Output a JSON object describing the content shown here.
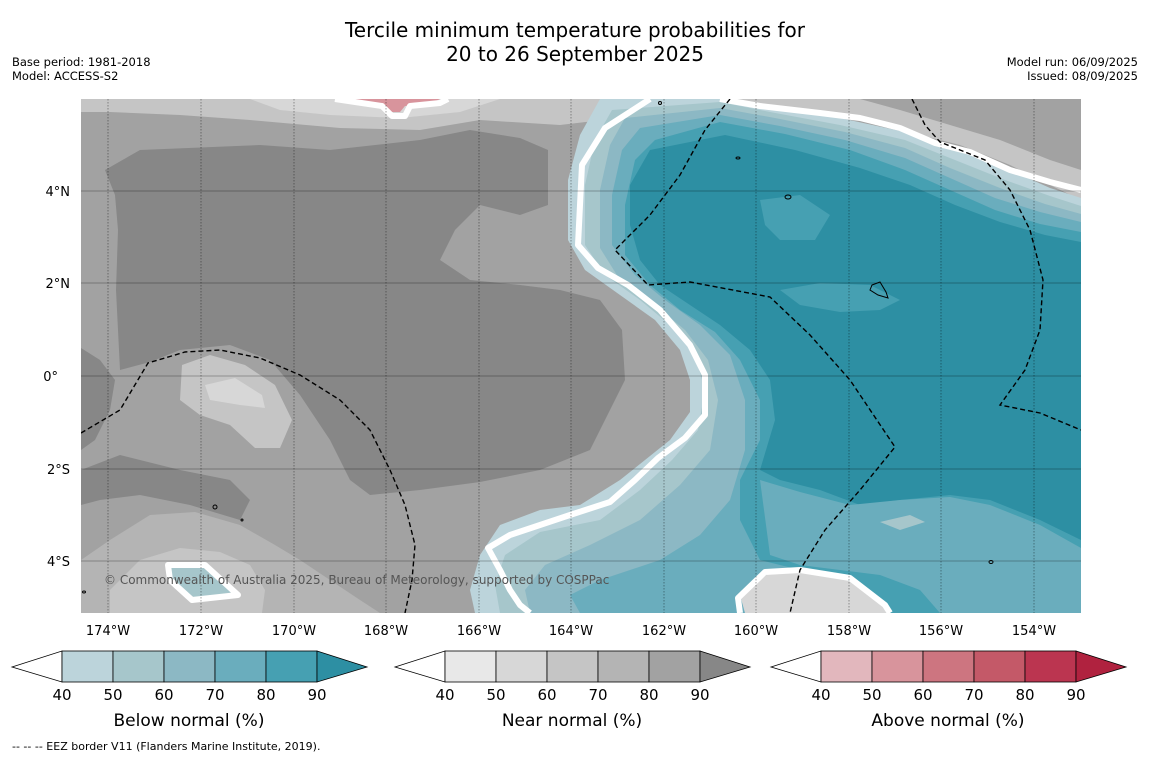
{
  "header": {
    "title_line1": "Tercile minimum temperature probabilities for",
    "title_line2": "20 to 26 September 2025",
    "base_period": "Base period: 1981-2018",
    "model": "Model: ACCESS-S2",
    "model_run": "Model run: 06/09/2025",
    "issued": "Issued: 08/09/2025"
  },
  "map": {
    "copyright": "© Commonwealth of Australia 2025, Bureau of Meteorology, supported by COSPPac",
    "lat_labels": [
      "4°N",
      "2°N",
      "0°",
      "2°S",
      "4°S"
    ],
    "lon_labels": [
      "174°W",
      "172°W",
      "170°W",
      "168°W",
      "166°W",
      "164°W",
      "162°W",
      "160°W",
      "158°W",
      "156°W",
      "154°W"
    ],
    "colors": {
      "below": [
        "#bcd4db",
        "#a6c6cb",
        "#8cb8c4",
        "#6aadbd",
        "#46a0b2",
        "#2d8fa3"
      ],
      "near": [
        "#e8e8e8",
        "#d7d7d7",
        "#c5c5c5",
        "#b4b4b4",
        "#a2a2a2",
        "#878787"
      ],
      "above": [
        "#e2b7bd",
        "#d8949c",
        "#cd7580",
        "#c45968",
        "#bb3550",
        "#b0223f"
      ]
    }
  },
  "colorbars": [
    {
      "title": "Below normal (%)",
      "ticks": [
        "40",
        "50",
        "60",
        "70",
        "80",
        "90"
      ]
    },
    {
      "title": "Near normal (%)",
      "ticks": [
        "40",
        "50",
        "60",
        "70",
        "80",
        "90"
      ]
    },
    {
      "title": "Above normal (%)",
      "ticks": [
        "40",
        "50",
        "60",
        "70",
        "80",
        "90"
      ]
    }
  ],
  "footnote": "-- -- -- EEZ border V11 (Flanders Marine Institute, 2019)."
}
